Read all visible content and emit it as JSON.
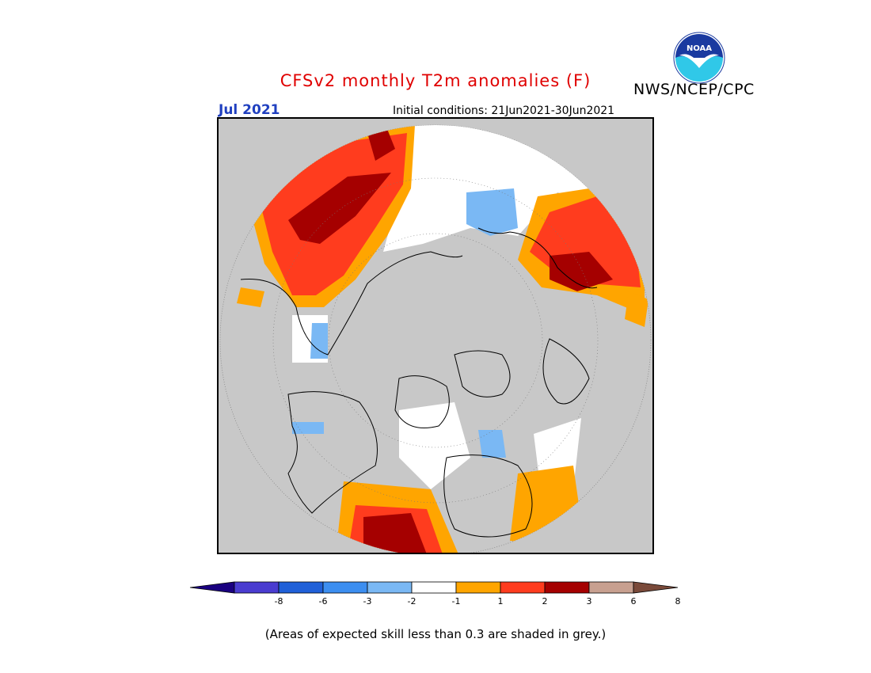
{
  "header": {
    "title": "CFSv2 monthly T2m anomalies (F)",
    "title_color": "#e00000",
    "month_label": "Jul 2021",
    "month_color": "#2040c0",
    "initial_conditions": "Initial conditions: 21Jun2021-30Jun2021",
    "organization": "NWS/NCEP/CPC",
    "logo_text": "NOAA"
  },
  "map": {
    "projection": "north-polar-stereographic",
    "land_color": "#c8c8c8",
    "low_skill_color": "#c8c8c8"
  },
  "colorbar": {
    "labels": [
      "-8",
      "-6",
      "-3",
      "-2",
      "-1",
      "1",
      "2",
      "3",
      "6",
      "8"
    ],
    "colors": [
      "#1a0080",
      "#4a3cd0",
      "#2060d8",
      "#3c8ef0",
      "#7ab8f4",
      "#ffffff",
      "#ffa500",
      "#ff3c1e",
      "#a50000",
      "#c8a090",
      "#7a4a3a"
    ]
  },
  "footnote": "(Areas of expected skill less than 0.3 are shaded in grey.)"
}
